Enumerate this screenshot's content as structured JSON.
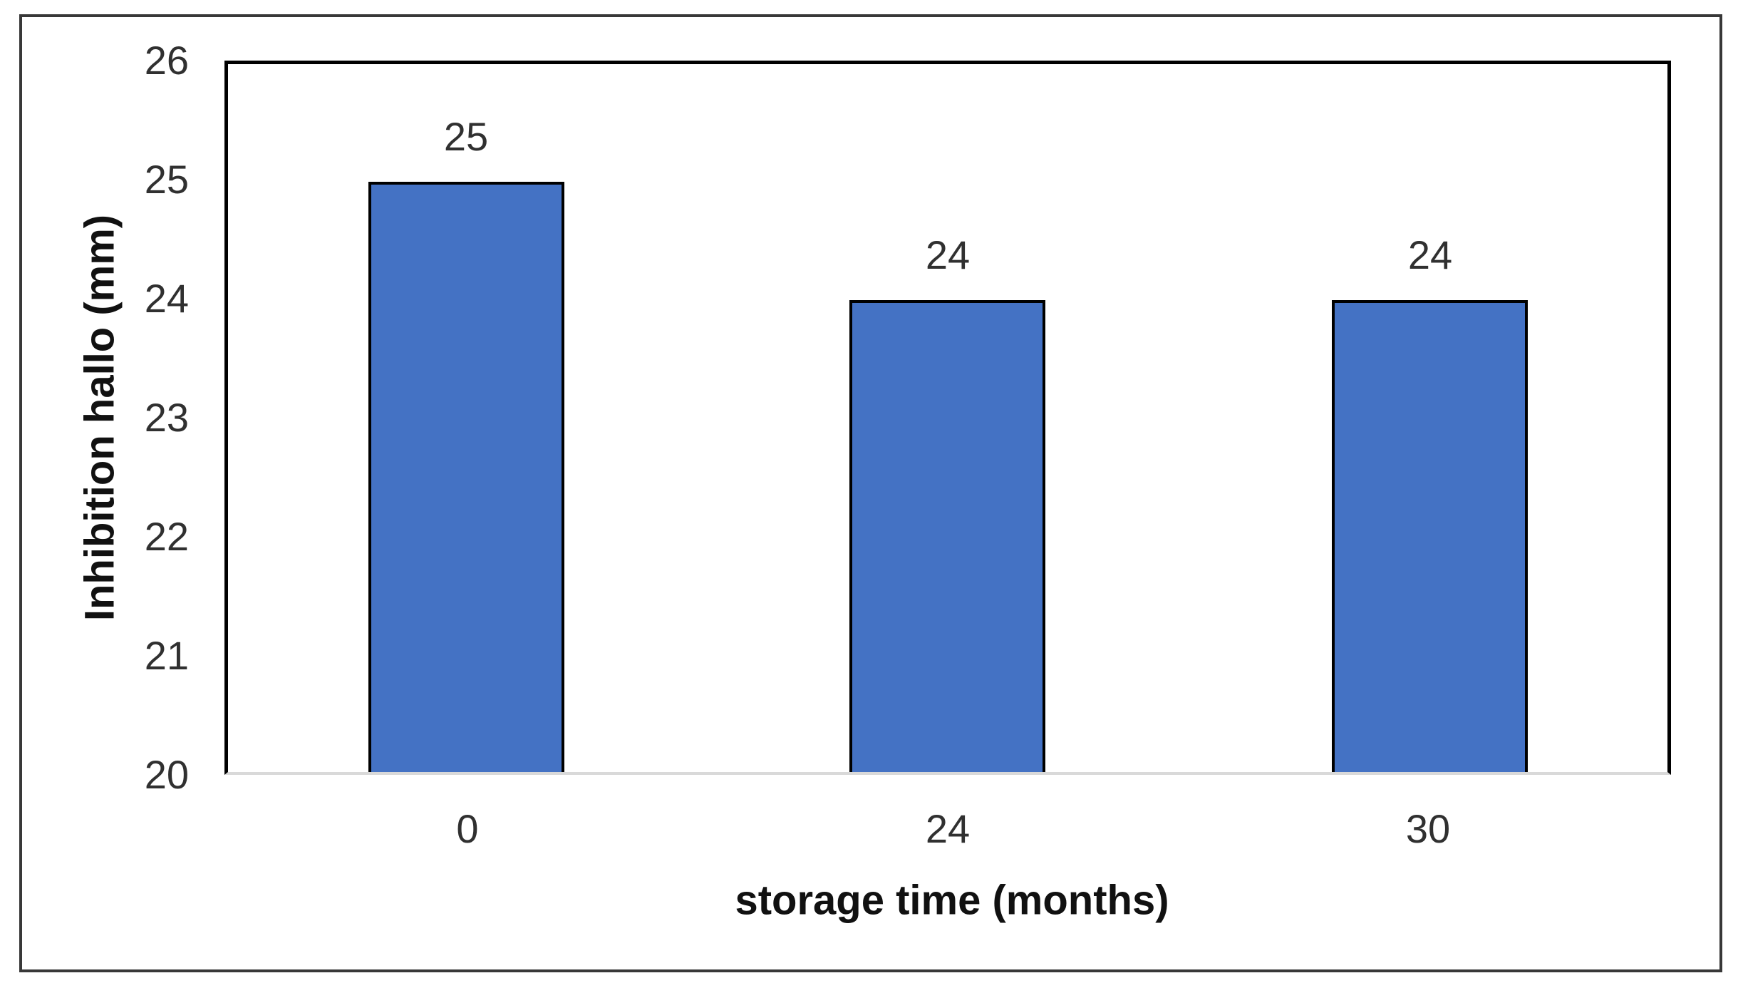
{
  "figure": {
    "background": "#ffffff",
    "outer_border_color": "#383838"
  },
  "chart_data": {
    "type": "bar",
    "title": "",
    "categories": [
      "0",
      "24",
      "30"
    ],
    "values": [
      25,
      24,
      24
    ],
    "data_labels": [
      "25",
      "24",
      "24"
    ],
    "xlabel": "storage time (months)",
    "ylabel": "Inhibition hallo (mm)",
    "ylim": [
      20,
      26
    ],
    "ytick_step": 1,
    "yticks": [
      "26",
      "25",
      "24",
      "23",
      "22",
      "21",
      "20"
    ],
    "bar_color": "#4472C4",
    "bar_border_color": "#000000",
    "axis_line_color": "#000000",
    "baseline_color": "#D9D9D9",
    "grid": "off",
    "legend": "none"
  }
}
